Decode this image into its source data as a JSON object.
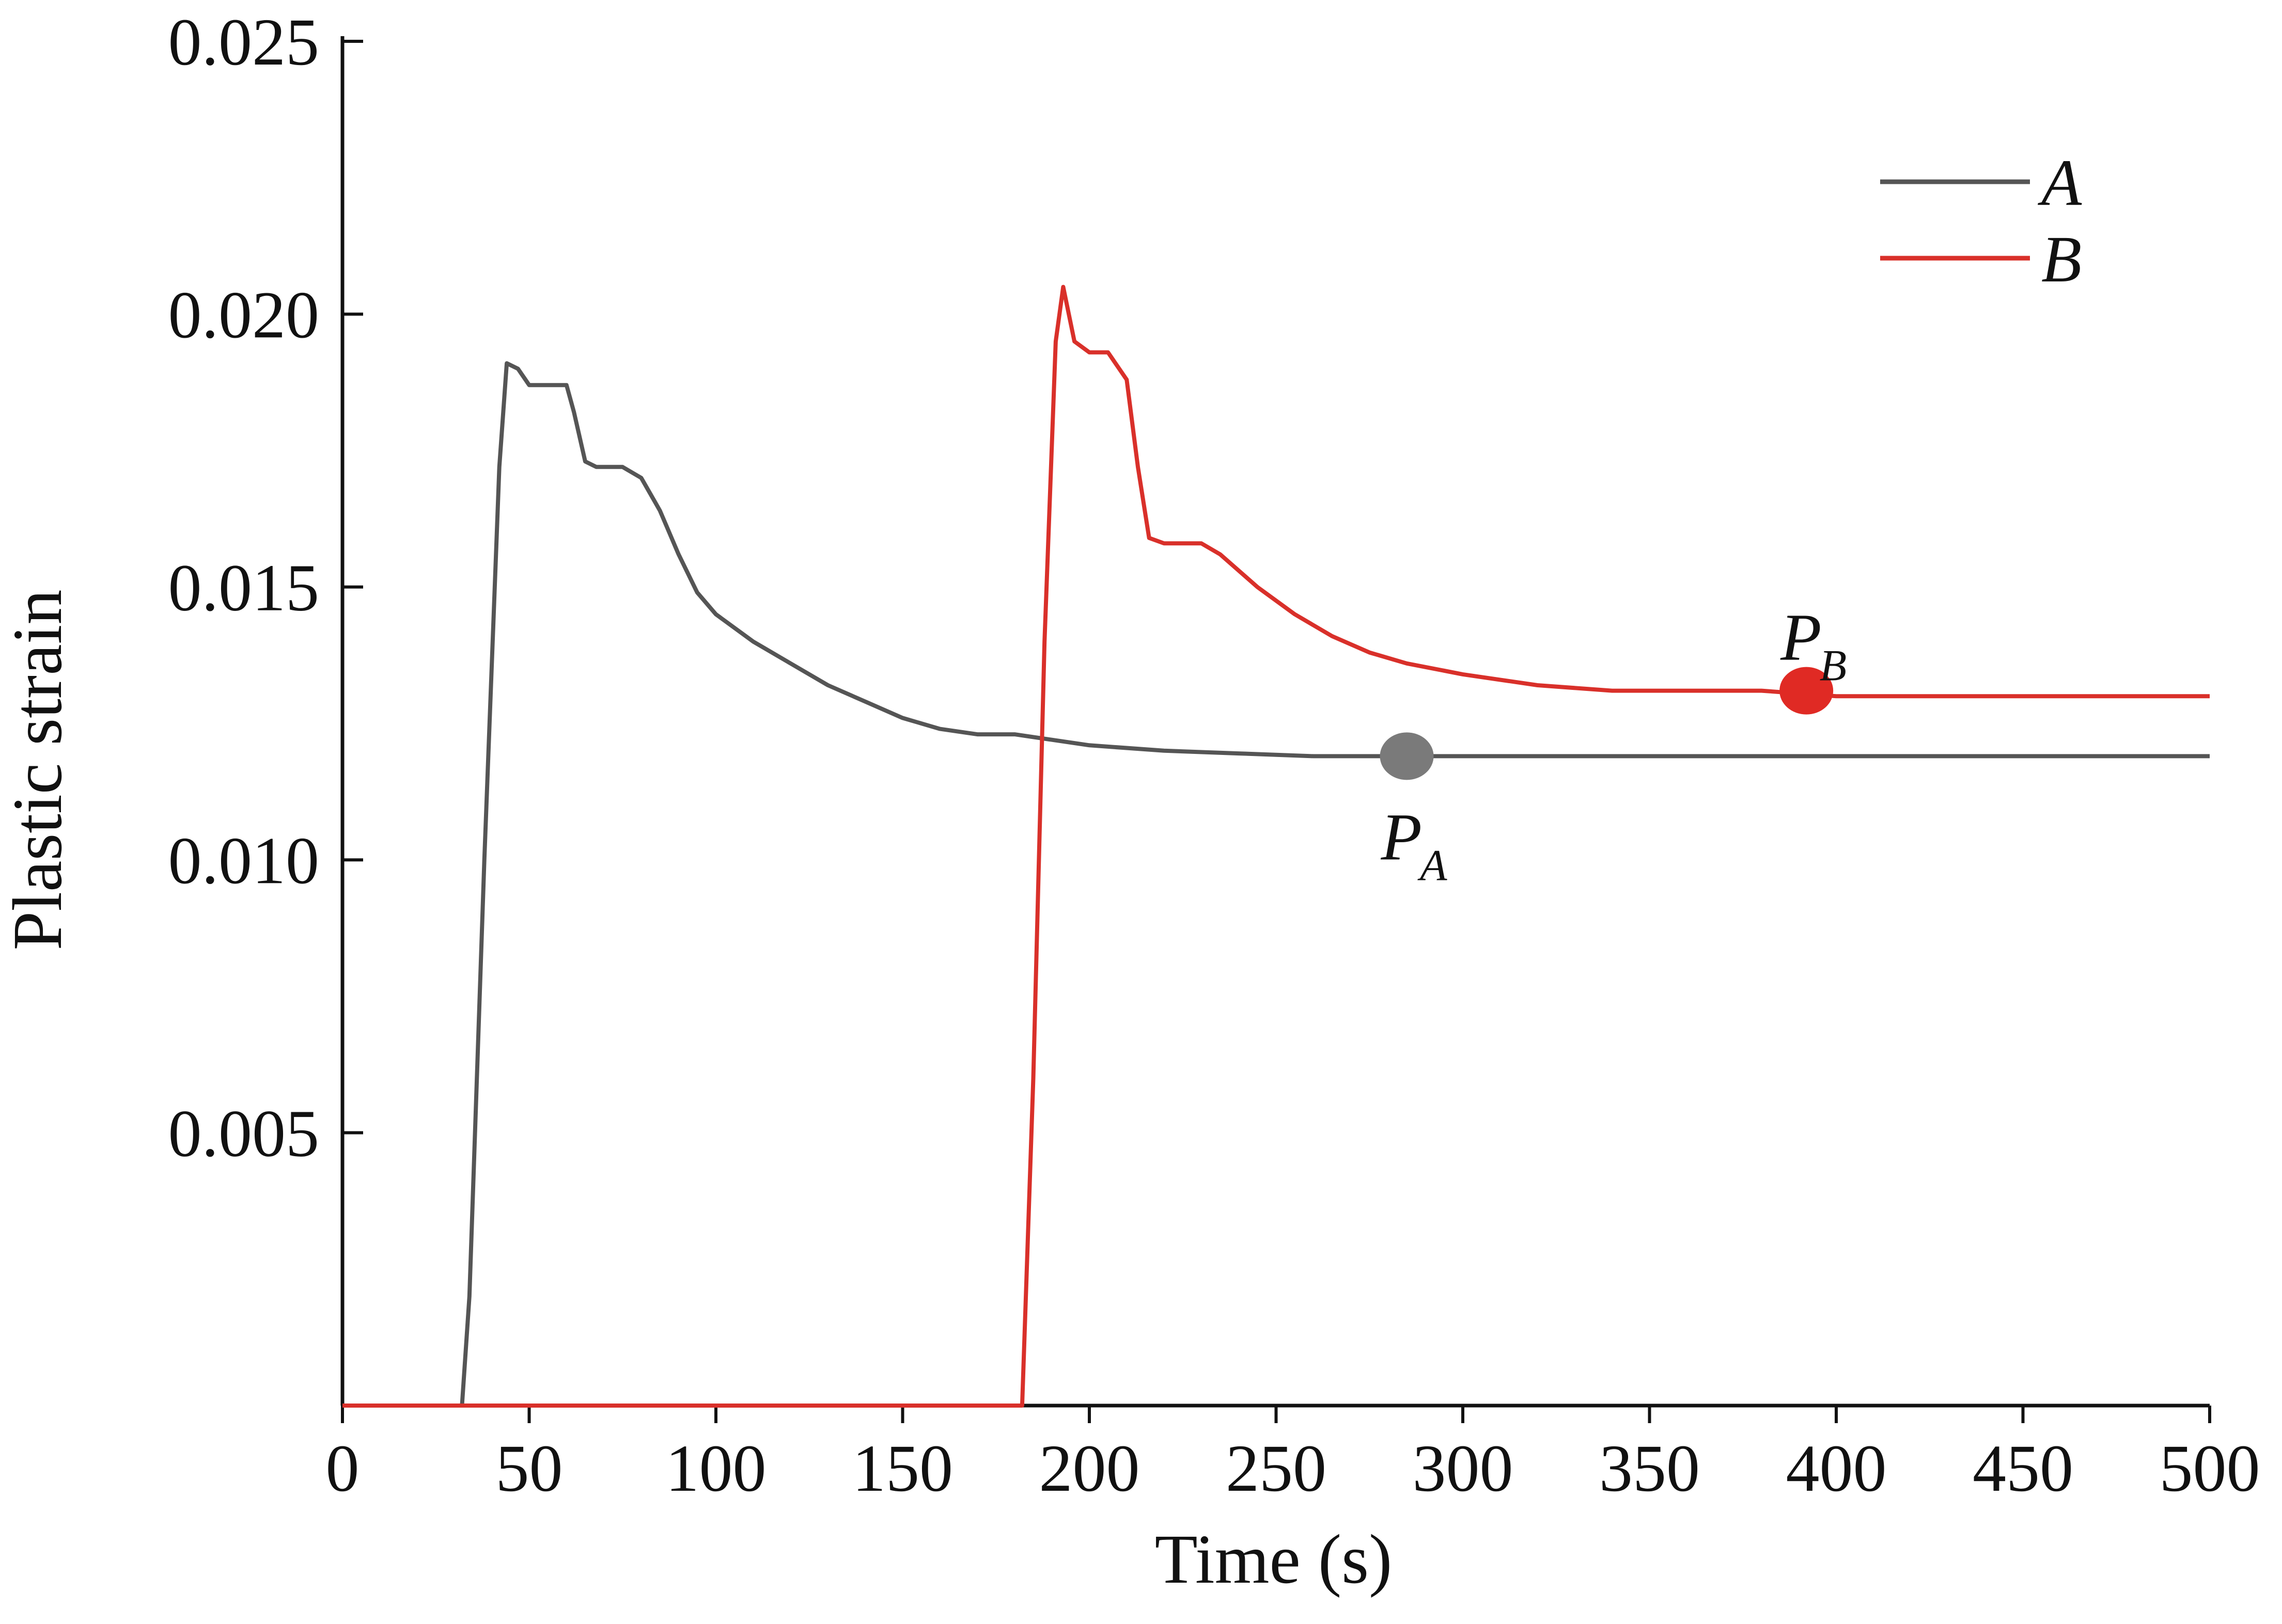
{
  "chart_data": {
    "type": "line",
    "title": "",
    "xlabel": "Time (s)",
    "ylabel": "Plastic strain",
    "xlim": [
      0,
      500
    ],
    "ylim": [
      0,
      0.025
    ],
    "x_ticks": [
      0,
      50,
      100,
      150,
      200,
      250,
      300,
      350,
      400,
      450,
      500
    ],
    "x_tick_labels": [
      "0",
      "50",
      "100",
      "150",
      "200",
      "250",
      "300",
      "350",
      "400",
      "450",
      "500"
    ],
    "y_ticks": [
      0.005,
      0.01,
      0.015,
      0.02,
      0.025
    ],
    "y_tick_labels": [
      "0.005",
      "0.010",
      "0.015",
      "0.020",
      "0.025"
    ],
    "grid": false,
    "legend_position": "top-right",
    "series": [
      {
        "name": "A",
        "color": "#555555",
        "x": [
          0,
          32,
          34,
          38,
          42,
          44,
          47,
          50,
          60,
          62,
          65,
          68,
          75,
          80,
          85,
          90,
          95,
          100,
          110,
          120,
          130,
          140,
          150,
          160,
          170,
          180,
          190,
          200,
          220,
          240,
          260,
          280,
          300,
          350,
          400,
          450,
          500
        ],
        "y": [
          0,
          0,
          0.002,
          0.01,
          0.0172,
          0.0191,
          0.019,
          0.0187,
          0.0187,
          0.0182,
          0.0173,
          0.0172,
          0.0172,
          0.017,
          0.0164,
          0.0156,
          0.0149,
          0.0145,
          0.014,
          0.0136,
          0.0132,
          0.0129,
          0.0126,
          0.0124,
          0.0123,
          0.0123,
          0.0122,
          0.0121,
          0.012,
          0.01195,
          0.0119,
          0.0119,
          0.0119,
          0.0119,
          0.0119,
          0.0119,
          0.0119
        ]
      },
      {
        "name": "B",
        "color": "#d9302a",
        "x": [
          0,
          182,
          185,
          188,
          191,
          193,
          196,
          200,
          205,
          210,
          213,
          216,
          220,
          230,
          235,
          245,
          255,
          265,
          275,
          285,
          300,
          320,
          340,
          360,
          380,
          400,
          450,
          500
        ],
        "y": [
          0,
          0,
          0.006,
          0.014,
          0.0195,
          0.0205,
          0.0195,
          0.0193,
          0.0193,
          0.0188,
          0.0172,
          0.0159,
          0.0158,
          0.0158,
          0.0156,
          0.015,
          0.0145,
          0.0141,
          0.0138,
          0.0136,
          0.0134,
          0.0132,
          0.0131,
          0.0131,
          0.0131,
          0.013,
          0.013,
          0.013
        ]
      }
    ],
    "annotations": [
      {
        "series": "A",
        "x": 285,
        "y": 0.0119,
        "label": "P",
        "subscript": "A",
        "label_side": "below",
        "color": "#7a7a7a"
      },
      {
        "series": "B",
        "x": 392,
        "y": 0.0131,
        "label": "P",
        "subscript": "B",
        "label_side": "above",
        "color": "#e02a24"
      }
    ]
  }
}
